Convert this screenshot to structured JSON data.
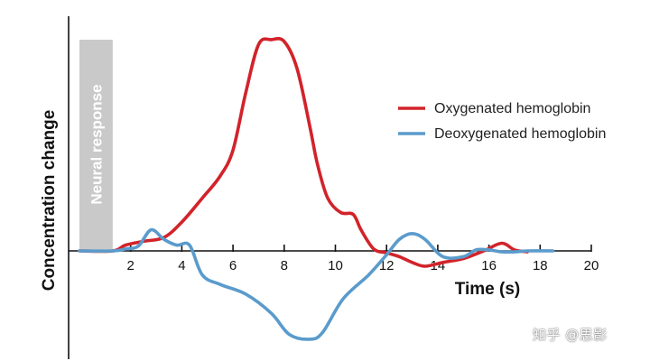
{
  "chart_data": {
    "type": "line",
    "title": "",
    "xlabel": "Time (s)",
    "ylabel": "Concentration change",
    "xlim": [
      0,
      20
    ],
    "ylim": [
      -1.0,
      2.3
    ],
    "x_ticks": [
      2,
      4,
      6,
      8,
      10,
      12,
      14,
      16,
      18,
      20
    ],
    "y_ticks": [],
    "grid": false,
    "legend_position": "top-right",
    "shaded_region": {
      "label": "Neural response",
      "x_start": 0,
      "x_end": 1.3,
      "color": "#c9c9c9"
    },
    "series": [
      {
        "name": "Oxygenated hemoglobin",
        "color": "#d2232a",
        "x": [
          0,
          1.3,
          1.8,
          2.5,
          3.3,
          4.0,
          4.8,
          5.5,
          6.0,
          6.5,
          7.0,
          7.5,
          8.0,
          8.5,
          9.0,
          9.3,
          9.7,
          10.2,
          10.7,
          11.0,
          11.5,
          12.0,
          12.5,
          13.0,
          13.5,
          14.2,
          15.0,
          15.8,
          16.5,
          17.0,
          17.5
        ],
        "y": [
          0,
          0,
          0.06,
          0.1,
          0.14,
          0.3,
          0.55,
          0.78,
          1.05,
          1.65,
          2.15,
          2.2,
          2.18,
          1.9,
          1.3,
          0.9,
          0.55,
          0.4,
          0.38,
          0.22,
          0.02,
          -0.02,
          -0.06,
          -0.12,
          -0.16,
          -0.12,
          -0.08,
          0.0,
          0.08,
          0.01,
          -0.01
        ]
      },
      {
        "name": "Deoxygenated hemoglobin",
        "color": "#5a9bcc",
        "x": [
          0,
          1.3,
          1.8,
          2.3,
          2.8,
          3.3,
          3.8,
          4.3,
          4.8,
          5.5,
          6.5,
          7.5,
          8.2,
          9.0,
          9.5,
          10.3,
          11.3,
          12.0,
          12.5,
          13.0,
          13.5,
          14.2,
          15.0,
          15.5,
          16.0,
          16.5,
          17.0,
          17.5,
          18.5
        ],
        "y": [
          0,
          0,
          0.02,
          0.05,
          0.22,
          0.12,
          0.06,
          0.06,
          -0.25,
          -0.35,
          -0.45,
          -0.65,
          -0.87,
          -0.92,
          -0.85,
          -0.5,
          -0.25,
          -0.04,
          0.12,
          0.18,
          0.12,
          -0.06,
          -0.06,
          0.01,
          0.01,
          -0.01,
          -0.01,
          0.0,
          0.0
        ]
      }
    ]
  },
  "watermark": "知乎 @思影"
}
